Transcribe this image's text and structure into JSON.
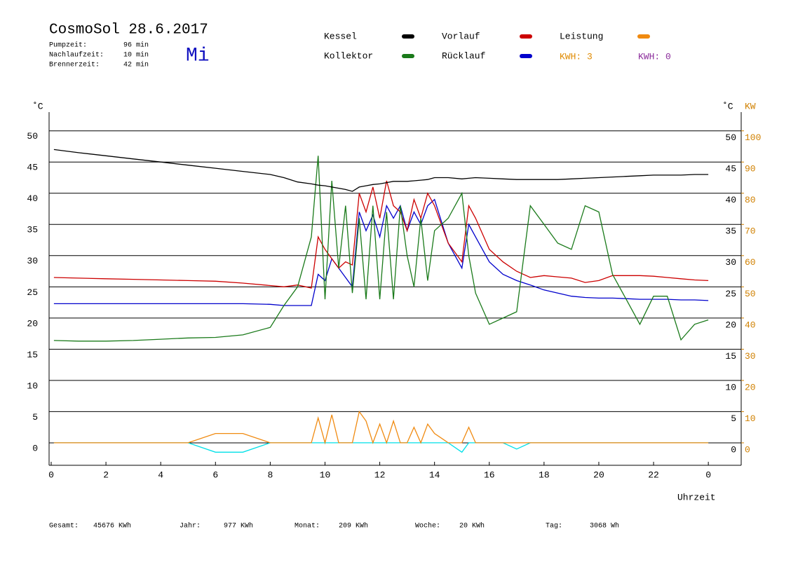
{
  "chart_data": {
    "type": "line",
    "title": "CosmoSol 28.6.2017",
    "weekday": "Mi",
    "info": [
      [
        "Pumpzeit:",
        "96 min"
      ],
      [
        "Nachlaufzeit:",
        "10 min"
      ],
      [
        "Brennerzeit:",
        "42 min"
      ]
    ],
    "kwh": [
      {
        "label": "KWH: 3",
        "color": "#e08a00"
      },
      {
        "label": "KWH: 0",
        "color": "#8a2a9a"
      }
    ],
    "y_label": "˚C",
    "y2_label": "KW",
    "x_label": "Uhrzeit",
    "footer": [
      [
        "Gesamt:",
        "45676 KWh"
      ],
      [
        "Jahr:",
        "977 KWh"
      ],
      [
        "Monat:",
        "209 KWh"
      ],
      [
        "Woche:",
        "20 KWh"
      ],
      [
        "Tag:",
        "3068 Wh"
      ]
    ],
    "grid": true,
    "xlim": [
      0,
      25.2
    ],
    "xticks": [
      0,
      2,
      4,
      6,
      8,
      10,
      12,
      14,
      16,
      18,
      20,
      22,
      {
        "value": 24,
        "label": "0"
      }
    ],
    "ylim": [
      -3.6,
      53
    ],
    "yticks": [
      0,
      5,
      10,
      15,
      20,
      25,
      30,
      35,
      40,
      45,
      50
    ],
    "y2lim": [
      -7.2,
      106
    ],
    "y2ticks": [
      0,
      10,
      20,
      30,
      40,
      50,
      60,
      70,
      80,
      90,
      100
    ],
    "x": [
      0.1,
      1,
      2,
      3,
      4,
      5,
      6,
      7,
      8,
      8.5,
      9,
      9.5,
      9.75,
      10,
      10.25,
      10.5,
      10.75,
      11,
      11.25,
      11.5,
      11.75,
      12,
      12.25,
      12.5,
      12.75,
      13,
      13.25,
      13.5,
      13.75,
      14,
      14.5,
      15,
      15.25,
      15.5,
      16,
      16.5,
      17,
      17.5,
      18,
      18.5,
      19,
      19.5,
      20,
      20.5,
      21,
      21.5,
      22,
      22.5,
      23,
      23.5,
      24
    ],
    "series": [
      {
        "name": "Kessel",
        "color": "#000000",
        "values": [
          47,
          46.5,
          46,
          45.5,
          45,
          44.5,
          44,
          43.5,
          43,
          42.5,
          41.8,
          41.5,
          41.3,
          41.2,
          41,
          40.8,
          40.6,
          40.3,
          41,
          41.2,
          41.4,
          41.5,
          41.7,
          41.9,
          41.9,
          41.9,
          42,
          42.1,
          42.2,
          42.5,
          42.5,
          42.3,
          42.4,
          42.5,
          42.4,
          42.3,
          42.2,
          42.2,
          42.2,
          42.2,
          42.3,
          42.4,
          42.5,
          42.6,
          42.7,
          42.8,
          42.9,
          42.9,
          42.9,
          43,
          43
        ]
      },
      {
        "name": "Kollektor",
        "color": "#1a7a1a",
        "values": [
          16.4,
          16.3,
          16.3,
          16.4,
          16.6,
          16.8,
          16.9,
          17.3,
          18.5,
          22,
          25,
          33,
          46,
          23,
          42,
          28,
          38,
          24,
          36,
          23,
          38,
          23,
          37,
          23,
          38,
          30,
          25,
          36,
          26,
          34,
          36,
          40,
          30,
          24,
          19,
          20,
          21,
          38,
          35,
          32,
          31,
          38,
          37,
          27,
          23,
          19,
          23.5,
          23.5,
          16.5,
          19,
          19.7
        ]
      },
      {
        "name": "Vorlauf",
        "color": "#cc0000",
        "values": [
          26.5,
          26.4,
          26.3,
          26.2,
          26.1,
          26,
          25.9,
          25.6,
          25.2,
          25,
          25.3,
          24.8,
          33,
          31,
          29.5,
          28,
          29,
          28.5,
          40,
          37,
          41,
          36,
          42,
          38,
          37,
          34,
          39,
          36,
          40,
          38,
          32,
          29,
          38,
          36,
          31,
          29,
          27.5,
          26.5,
          26.8,
          26.6,
          26.4,
          25.7,
          26,
          26.8,
          26.8,
          26.8,
          26.7,
          26.5,
          26.3,
          26.1,
          26
        ]
      },
      {
        "name": "Rücklauf",
        "color": "#0000cc",
        "values": [
          22.3,
          22.3,
          22.3,
          22.3,
          22.3,
          22.3,
          22.3,
          22.3,
          22.2,
          22,
          22,
          22,
          27,
          26,
          29.5,
          28,
          26.5,
          25,
          37,
          34,
          36.5,
          33,
          38,
          36,
          38,
          34,
          37,
          35,
          38,
          39,
          32,
          28,
          35,
          33,
          29,
          27,
          26,
          25.3,
          24.5,
          24,
          23.5,
          23.3,
          23.2,
          23.2,
          23.1,
          23,
          23,
          23,
          22.9,
          22.9,
          22.8
        ]
      },
      {
        "name": "Leistung",
        "color": "#f08a10",
        "axis": "y2",
        "values": [
          0,
          0,
          0,
          0,
          0,
          0,
          3,
          3,
          0,
          0,
          0,
          0,
          8,
          0,
          9,
          0,
          0,
          0,
          10,
          7,
          0,
          6,
          0,
          7,
          0,
          0,
          5,
          0,
          6,
          3,
          0,
          0,
          5,
          0,
          0,
          0,
          0,
          0,
          0,
          0,
          0,
          0,
          0,
          0,
          0,
          0,
          0,
          0,
          0,
          0,
          0
        ]
      },
      {
        "color": "#00e0e8",
        "values": [
          0,
          0,
          0,
          0,
          0,
          0,
          -1.5,
          -1.5,
          0,
          0,
          0,
          0,
          0,
          0,
          0,
          0,
          0,
          0,
          0,
          0,
          0,
          0,
          0,
          0,
          0,
          0,
          0,
          0,
          0,
          0,
          0,
          -1.5,
          0,
          0,
          0,
          0,
          -1,
          0,
          0,
          0,
          0,
          0,
          0,
          0,
          0,
          0,
          0,
          0,
          0,
          0,
          0
        ]
      }
    ]
  }
}
